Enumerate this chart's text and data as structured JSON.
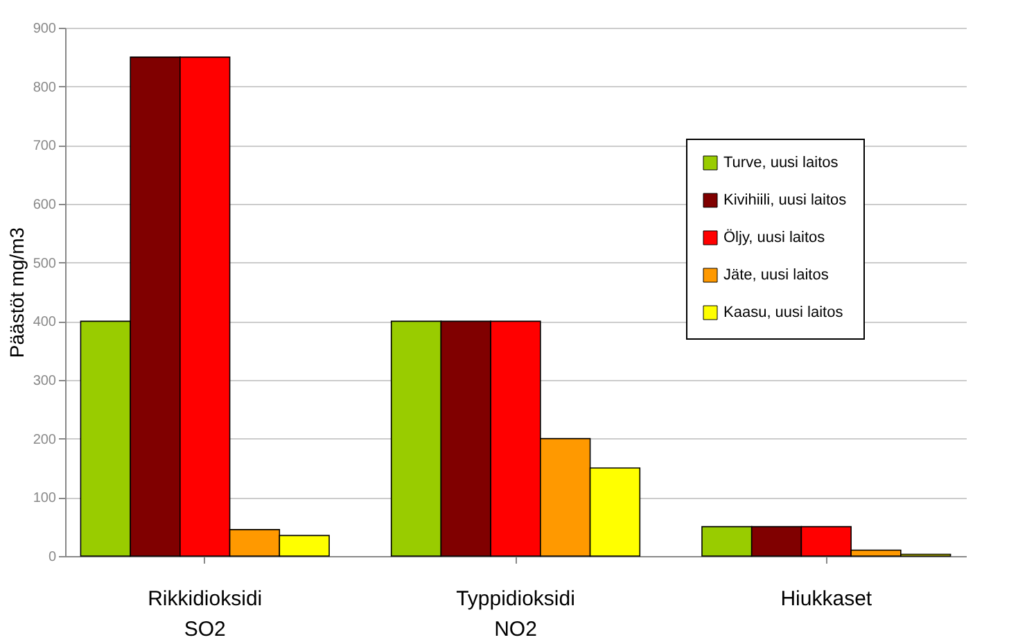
{
  "chart_data": {
    "type": "bar",
    "ylabel": "Päästöt mg/m3",
    "categories": [
      "Rikkidioksidi\nSO2",
      "Typpidioksidi\nNO2",
      "Hiukkaset"
    ],
    "series": [
      {
        "name": "Turve, uusi laitos",
        "color": "#99cc00",
        "values": [
          400,
          400,
          50
        ]
      },
      {
        "name": "Kivihiili, uusi laitos",
        "color": "#800000",
        "values": [
          850,
          400,
          50
        ]
      },
      {
        "name": "Öljy, uusi laitos",
        "color": "#ff0000",
        "values": [
          850,
          400,
          50
        ]
      },
      {
        "name": "Jäte, uusi laitos",
        "color": "#ff9900",
        "values": [
          45,
          200,
          10
        ]
      },
      {
        "name": "Kaasu, uusi laitos",
        "color": "#ffff00",
        "values": [
          35,
          150,
          3
        ]
      }
    ],
    "ylim": [
      0,
      900
    ],
    "yticks": [
      0,
      100,
      200,
      300,
      400,
      500,
      600,
      700,
      800,
      900
    ],
    "grid": "y",
    "legend": "right"
  }
}
